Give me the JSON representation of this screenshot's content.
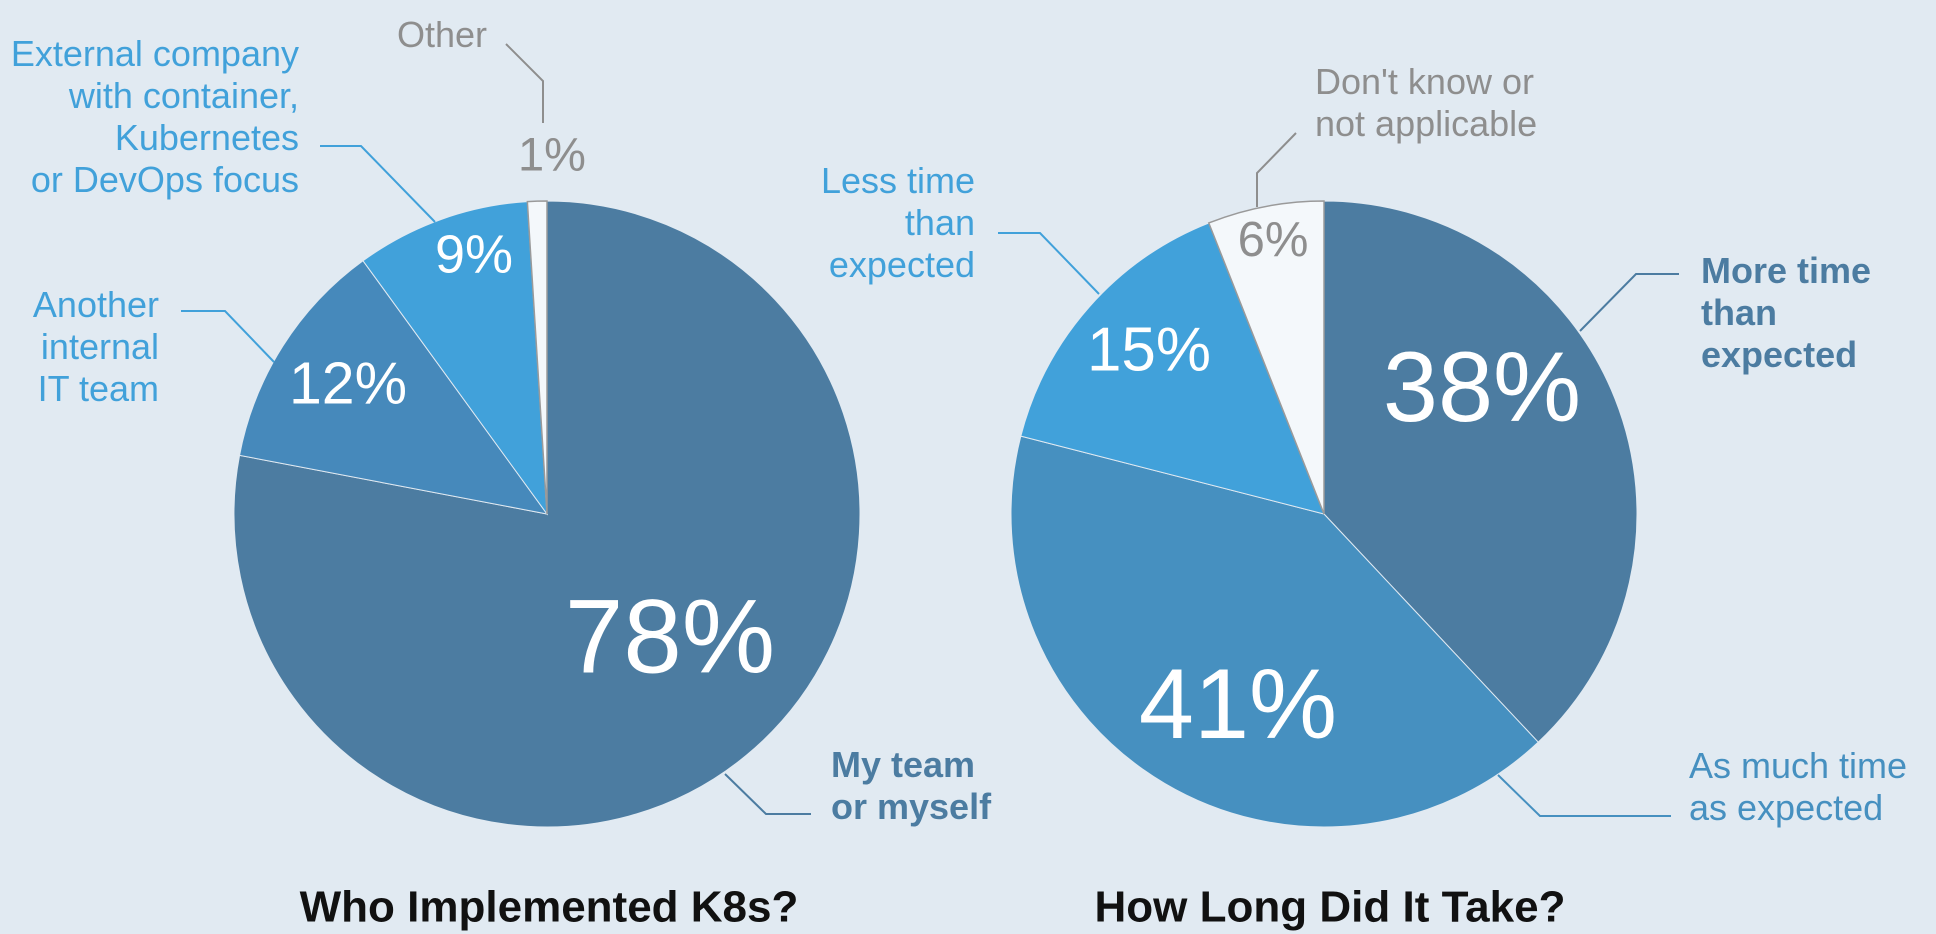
{
  "chart_data": [
    {
      "type": "pie",
      "title": "Who Implemented K8s?",
      "categories": [
        "My team\nor myself",
        "Another\ninternal\nIT team",
        "External company\nwith container,\nKubernetes\nor DevOps focus",
        "Other"
      ],
      "values": [
        78,
        12,
        9,
        1
      ],
      "value_labels": [
        "78%",
        "12%",
        "9%",
        "1%"
      ],
      "colors": [
        "#4c7ca1",
        "#4689bb",
        "#41a1da",
        "#f4f8fb"
      ],
      "label_colors": [
        "#4c7ca1",
        "#41a1da",
        "#41a1da",
        "#8e8e8e"
      ]
    },
    {
      "type": "pie",
      "title": "How Long Did It Take?",
      "categories": [
        "More time\nthan\nexpected",
        "As much time\nas expected",
        "Less time\nthan\nexpected",
        "Don't know or\nnot applicable"
      ],
      "values": [
        38,
        41,
        15,
        6
      ],
      "value_labels": [
        "38%",
        "41%",
        "15%",
        "6%"
      ],
      "colors": [
        "#4c7ca1",
        "#4690c0",
        "#41a1da",
        "#f4f8fb"
      ],
      "label_colors": [
        "#4c7ca1",
        "#4690c0",
        "#41a1da",
        "#8e8e8e"
      ]
    }
  ]
}
